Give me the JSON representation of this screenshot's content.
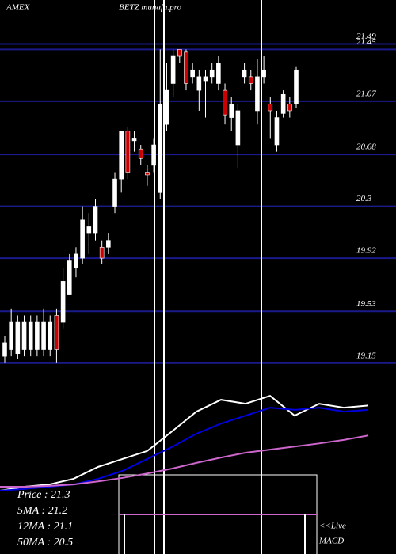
{
  "chart_data": {
    "type": "candlestick",
    "exchange": "AMEX",
    "title": "BETZ munafa.pro",
    "ylim": [
      19.05,
      21.58
    ],
    "yticks": [
      21.49,
      21.45,
      21.07,
      20.68,
      20.3,
      19.92,
      19.53,
      19.15
    ],
    "up_color": "#ffffff",
    "down_color": "#cc0000",
    "grid_color": "#1a1a8c",
    "open": [
      19.2,
      19.25,
      19.22,
      19.25,
      19.25,
      19.25,
      19.25,
      19.25,
      19.5,
      19.45,
      19.65,
      19.85,
      19.92,
      20.1,
      20.1,
      20.0,
      20.0,
      20.3,
      20.5,
      20.85,
      20.78,
      20.72,
      20.55,
      20.6,
      20.4,
      20.9,
      21.2,
      21.45,
      21.43,
      21.25,
      21.15,
      21.22,
      21.25,
      21.2,
      21.15,
      20.95,
      20.75,
      21.25,
      21.25,
      21.0,
      21.25,
      21.05,
      20.75,
      20.98,
      21.05,
      21.05
    ],
    "high": [
      19.35,
      19.55,
      19.5,
      19.5,
      19.5,
      19.5,
      19.55,
      19.5,
      19.55,
      19.85,
      19.95,
      20.0,
      20.3,
      20.25,
      20.35,
      20.05,
      20.1,
      20.55,
      20.85,
      20.88,
      20.85,
      20.75,
      20.6,
      20.8,
      21.45,
      21.35,
      21.45,
      21.45,
      21.45,
      21.35,
      21.3,
      21.3,
      21.35,
      21.4,
      21.2,
      21.1,
      21.05,
      21.35,
      21.3,
      21.38,
      21.4,
      21.1,
      21.0,
      21.15,
      21.1,
      21.32
    ],
    "low": [
      19.15,
      19.2,
      19.18,
      19.2,
      19.2,
      19.2,
      19.2,
      19.2,
      19.15,
      19.4,
      19.65,
      19.78,
      19.88,
      19.95,
      20.05,
      19.88,
      19.95,
      20.25,
      20.4,
      20.5,
      20.7,
      20.6,
      20.45,
      20.55,
      20.35,
      20.85,
      21.1,
      21.35,
      21.15,
      21.2,
      21.0,
      20.95,
      21.2,
      21.15,
      20.9,
      20.85,
      20.58,
      21.2,
      21.15,
      20.9,
      21.2,
      20.8,
      20.7,
      20.95,
      20.95,
      21.02
    ],
    "close": [
      19.3,
      19.45,
      19.45,
      19.45,
      19.45,
      19.45,
      19.45,
      19.45,
      19.25,
      19.75,
      19.9,
      19.95,
      20.2,
      20.15,
      20.3,
      19.92,
      20.05,
      20.5,
      20.85,
      20.55,
      20.8,
      20.65,
      20.53,
      20.75,
      21.05,
      21.15,
      21.4,
      21.4,
      21.2,
      21.3,
      21.25,
      21.25,
      21.3,
      21.35,
      20.97,
      21.05,
      21.0,
      21.3,
      21.2,
      21.25,
      21.3,
      21.0,
      20.95,
      21.12,
      21.0,
      21.3
    ],
    "lower_ylim": [
      19.0,
      21.6
    ],
    "lower_series": [
      {
        "color": "#ffffff",
        "values": [
          19.09,
          19.18,
          19.23,
          19.36,
          19.63,
          19.81,
          19.99,
          20.43,
          20.88,
          21.15,
          21.06,
          21.24,
          20.79,
          21.06,
          20.97,
          21.02
        ]
      },
      {
        "color": "#0000dd",
        "values": [
          19.09,
          19.13,
          19.18,
          19.23,
          19.36,
          19.54,
          19.81,
          20.08,
          20.38,
          20.61,
          20.79,
          20.97,
          20.92,
          20.97,
          20.88,
          20.92
        ]
      },
      {
        "color": "#cc66cc",
        "values": [
          19.18,
          19.18,
          19.2,
          19.23,
          19.3,
          19.38,
          19.48,
          19.59,
          19.72,
          19.84,
          19.95,
          20.02,
          20.09,
          20.16,
          20.24,
          20.34
        ]
      }
    ],
    "legend": [
      "Price   : 21.3",
      "5MA   : 21.2",
      "12MA : 21.1",
      "50MA : 20.5"
    ],
    "macd_label": [
      "<<Live",
      "MACD"
    ]
  }
}
